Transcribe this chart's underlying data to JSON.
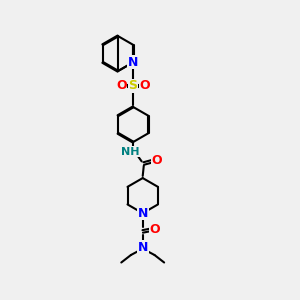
{
  "background_color": "#f0f0f0",
  "atom_colors": {
    "C": "#000000",
    "N": "#0000ff",
    "O": "#ff0000",
    "S": "#cccc00",
    "H": "#008080"
  },
  "title": "",
  "figsize": [
    3.0,
    3.0
  ],
  "dpi": 100
}
